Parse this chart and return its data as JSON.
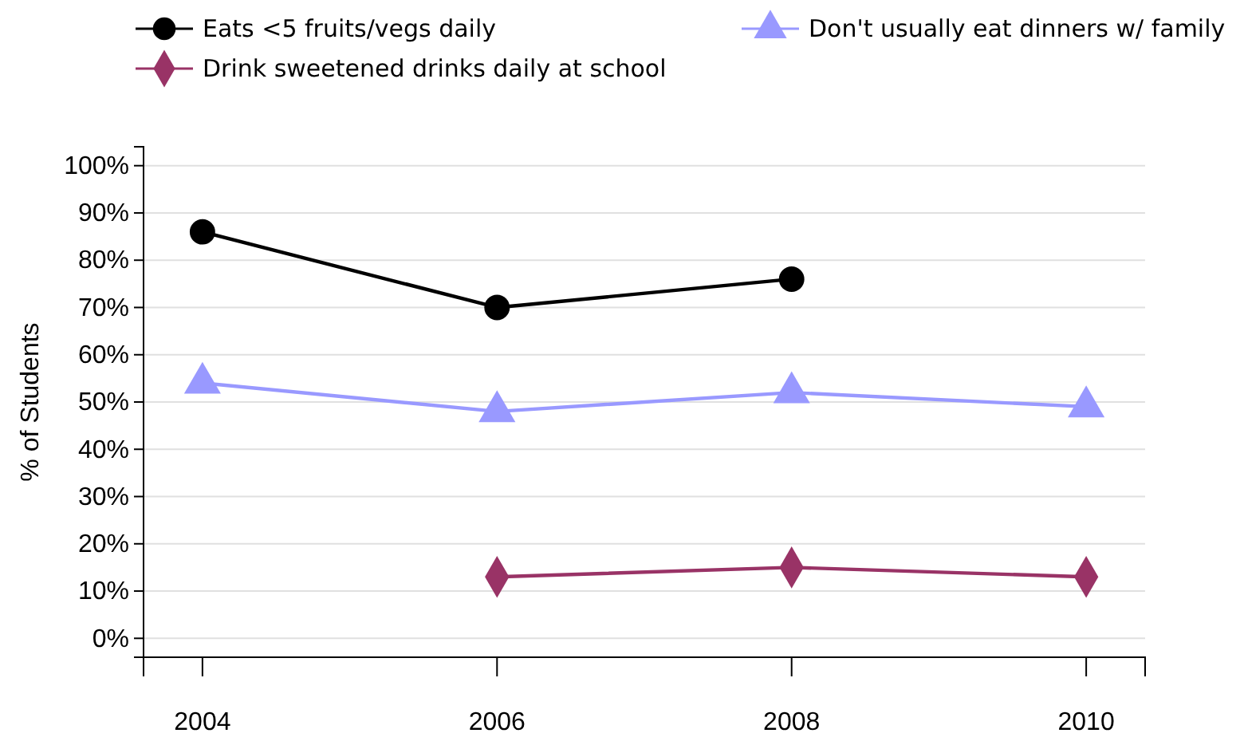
{
  "chart_data": {
    "type": "line",
    "ylabel": "% of Students",
    "x": [
      2004,
      2006,
      2008,
      2010
    ],
    "xlim": [
      2003.6,
      2010.4
    ],
    "xticks": [
      2004,
      2006,
      2008,
      2010
    ],
    "ylim": [
      -4,
      104
    ],
    "yticks": [
      {
        "value": 0,
        "label": "0%"
      },
      {
        "value": 10,
        "label": "10%"
      },
      {
        "value": 20,
        "label": "20%"
      },
      {
        "value": 30,
        "label": "30%"
      },
      {
        "value": 40,
        "label": "40%"
      },
      {
        "value": 50,
        "label": "50%"
      },
      {
        "value": 60,
        "label": "60%"
      },
      {
        "value": 70,
        "label": "70%"
      },
      {
        "value": 80,
        "label": "80%"
      },
      {
        "value": 90,
        "label": "90%"
      },
      {
        "value": 100,
        "label": "100%"
      }
    ],
    "grid": "y",
    "legend": "top",
    "series": [
      {
        "name": "Eats <5 fruits/vegs daily",
        "color": "#000000",
        "marker": "circle",
        "values": [
          86,
          70,
          76,
          null
        ]
      },
      {
        "name": "Don't usually eat dinners w/ family",
        "color": "#9999ff",
        "marker": "triangle",
        "values": [
          54,
          48,
          52,
          49
        ]
      },
      {
        "name": "Drink sweetened drinks daily at school",
        "color": "#993366",
        "marker": "diamond",
        "values": [
          null,
          13,
          15,
          13
        ]
      }
    ]
  }
}
